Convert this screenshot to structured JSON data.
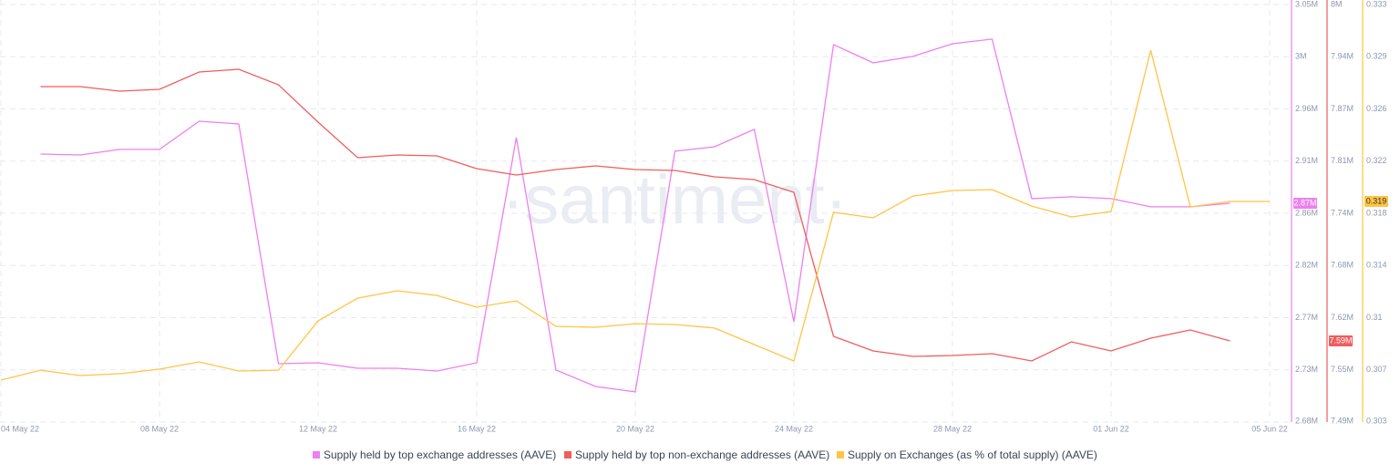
{
  "chart_data": {
    "type": "line",
    "watermark": "·santiment·",
    "x": [
      "04 May 22",
      "05 May 22",
      "06 May 22",
      "07 May 22",
      "08 May 22",
      "09 May 22",
      "10 May 22",
      "11 May 22",
      "12 May 22",
      "13 May 22",
      "14 May 22",
      "15 May 22",
      "16 May 22",
      "17 May 22",
      "18 May 22",
      "19 May 22",
      "20 May 22",
      "21 May 22",
      "22 May 22",
      "23 May 22",
      "24 May 22",
      "25 May 22",
      "26 May 22",
      "27 May 22",
      "28 May 22",
      "29 May 22",
      "30 May 22",
      "31 May 22",
      "01 Jun 22",
      "02 Jun 22",
      "03 Jun 22",
      "04 Jun 22",
      "05 Jun 22"
    ],
    "xticks": [
      "04 May 22",
      "08 May 22",
      "12 May 22",
      "16 May 22",
      "20 May 22",
      "24 May 22",
      "28 May 22",
      "01 Jun 22",
      "05 Jun 22"
    ],
    "grid": true,
    "legend": "bottom",
    "ylim": [
      2.68,
      3.05
    ],
    "yticks": [
      {
        "value": 2.68,
        "label": "2.68M"
      },
      {
        "value": 2.72625,
        "label": "2.73M"
      },
      {
        "value": 2.7725,
        "label": "2.77M"
      },
      {
        "value": 2.81875,
        "label": "2.82M"
      },
      {
        "value": 2.865,
        "label": "2.86M"
      },
      {
        "value": 2.91125,
        "label": "2.91M"
      },
      {
        "value": 2.9575,
        "label": "2.96M"
      },
      {
        "value": 3.00375,
        "label": "3M"
      },
      {
        "value": 3.05,
        "label": "3.05M"
      }
    ],
    "y2lim": [
      7.49,
      8.0
    ],
    "y2ticks": [
      {
        "value": 7.49,
        "label": "7.49M"
      },
      {
        "value": 7.55375,
        "label": "7.55M"
      },
      {
        "value": 7.6175,
        "label": "7.62M"
      },
      {
        "value": 7.68125,
        "label": "7.68M"
      },
      {
        "value": 7.745,
        "label": "7.74M"
      },
      {
        "value": 7.80875,
        "label": "7.81M"
      },
      {
        "value": 7.8725,
        "label": "7.87M"
      },
      {
        "value": 7.93625,
        "label": "7.94M"
      },
      {
        "value": 8.0,
        "label": "8M"
      }
    ],
    "y3lim": [
      0.303,
      0.333
    ],
    "y3ticks": [
      0.303,
      {
        "value": 0.30675,
        "label": "0.307"
      },
      {
        "value": 0.3105,
        "label": "0.31"
      },
      {
        "value": 0.31425,
        "label": "0.314"
      },
      0.318,
      {
        "value": 0.32175,
        "label": "0.322"
      },
      {
        "value": 0.3255,
        "label": "0.326"
      },
      {
        "value": 0.32925,
        "label": "0.329"
      },
      0.333
    ],
    "series": [
      {
        "name": "Supply held by top exchange addresses (AAVE)",
        "color": "#ee7ff0",
        "axis": "y",
        "values": [
          null,
          2.9175,
          2.9167,
          2.9216,
          2.9216,
          2.9466,
          2.9442,
          2.7317,
          2.7325,
          2.7277,
          2.7277,
          2.7252,
          2.7325,
          2.9321,
          2.7261,
          2.7115,
          2.7067,
          2.92,
          2.924,
          2.9394,
          2.7689,
          3.0145,
          2.9984,
          3.004,
          3.0153,
          3.0194,
          2.878,
          2.8796,
          2.878,
          2.8707,
          2.8707,
          2.8739,
          null
        ],
        "value_labels": [
          null,
          null,
          null,
          null,
          null,
          null,
          null,
          null,
          null,
          null,
          null,
          null,
          null,
          null,
          null,
          null,
          null,
          null,
          null,
          null,
          null,
          null,
          null,
          null,
          null,
          null,
          null,
          null,
          null,
          null,
          null,
          "2.87M",
          null
        ]
      },
      {
        "name": "Supply held by top non-exchange addresses (AAVE)",
        "color": "#f25c5c",
        "axis": "y2",
        "values": [
          null,
          7.8998,
          7.8998,
          7.8942,
          7.8964,
          7.9176,
          7.9209,
          7.902,
          7.8563,
          7.8129,
          7.8163,
          7.8151,
          7.7996,
          7.7918,
          7.7984,
          7.8029,
          7.7984,
          7.7973,
          7.7895,
          7.7862,
          7.7706,
          7.5947,
          7.5769,
          7.5702,
          7.5713,
          7.5735,
          7.5646,
          7.588,
          7.5769,
          7.5924,
          7.6025,
          7.5891,
          null
        ],
        "value_labels": [
          null,
          null,
          null,
          null,
          null,
          null,
          null,
          null,
          null,
          null,
          null,
          null,
          null,
          null,
          null,
          null,
          null,
          null,
          null,
          null,
          null,
          null,
          null,
          null,
          null,
          null,
          null,
          null,
          null,
          null,
          null,
          "7.59M",
          null
        ]
      },
      {
        "name": "Supply on Exchanges (as % of total supply) (AAVE)",
        "color": "#ffc443",
        "axis": "y3",
        "values": [
          0.30601,
          0.30673,
          0.30634,
          0.30647,
          0.3068,
          0.30732,
          0.30667,
          0.30673,
          0.31027,
          0.31191,
          0.31243,
          0.3121,
          0.31125,
          0.31171,
          0.30988,
          0.30981,
          0.31007,
          0.31001,
          0.30975,
          0.30857,
          0.30739,
          0.31807,
          0.31767,
          0.31924,
          0.31964,
          0.3197,
          0.31852,
          0.31774,
          0.31813,
          0.32972,
          0.31846,
          0.31885,
          0.31885
        ],
        "value_labels": [
          null,
          null,
          null,
          null,
          null,
          null,
          null,
          null,
          null,
          null,
          null,
          null,
          null,
          null,
          null,
          null,
          null,
          null,
          null,
          null,
          null,
          null,
          null,
          null,
          null,
          null,
          null,
          null,
          null,
          null,
          null,
          null,
          "0.319"
        ]
      }
    ]
  }
}
